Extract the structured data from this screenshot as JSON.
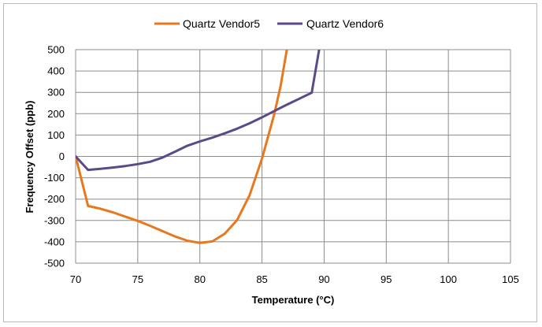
{
  "chart_data": {
    "type": "line",
    "xlabel": "Temperature (°C)",
    "ylabel": "Frequency Offset (ppb)",
    "xlim": [
      70,
      105
    ],
    "ylim": [
      -500,
      500
    ],
    "x_ticks": [
      70,
      75,
      80,
      85,
      90,
      95,
      100,
      105
    ],
    "y_ticks": [
      500,
      400,
      300,
      200,
      100,
      0,
      -100,
      -200,
      -300,
      -400,
      -500
    ],
    "grid": true,
    "legend_position": "top",
    "series": [
      {
        "name": "Quartz Vendor5",
        "color": "#e8781e",
        "points": [
          [
            70,
            0
          ],
          [
            71,
            -232
          ],
          [
            72,
            -245
          ],
          [
            73,
            -262
          ],
          [
            74,
            -282
          ],
          [
            75,
            -302
          ],
          [
            76,
            -325
          ],
          [
            77,
            -350
          ],
          [
            78,
            -375
          ],
          [
            79,
            -395
          ],
          [
            80,
            -405
          ],
          [
            81,
            -398
          ],
          [
            82,
            -362
          ],
          [
            83,
            -298
          ],
          [
            84,
            -182
          ],
          [
            85,
            -10
          ],
          [
            86,
            200
          ],
          [
            86.5,
            330
          ],
          [
            87,
            500
          ]
        ]
      },
      {
        "name": "Quartz Vendor6",
        "color": "#5b4a8a",
        "points": [
          [
            70,
            0
          ],
          [
            71,
            -63
          ],
          [
            72,
            -58
          ],
          [
            73,
            -52
          ],
          [
            74,
            -45
          ],
          [
            75,
            -36
          ],
          [
            76,
            -25
          ],
          [
            77,
            -5
          ],
          [
            78,
            22
          ],
          [
            79,
            50
          ],
          [
            80,
            70
          ],
          [
            81,
            88
          ],
          [
            82,
            108
          ],
          [
            83,
            130
          ],
          [
            84,
            155
          ],
          [
            85,
            183
          ],
          [
            86,
            213
          ],
          [
            87,
            242
          ],
          [
            88,
            270
          ],
          [
            89,
            298
          ],
          [
            89.6,
            500
          ]
        ]
      }
    ]
  }
}
